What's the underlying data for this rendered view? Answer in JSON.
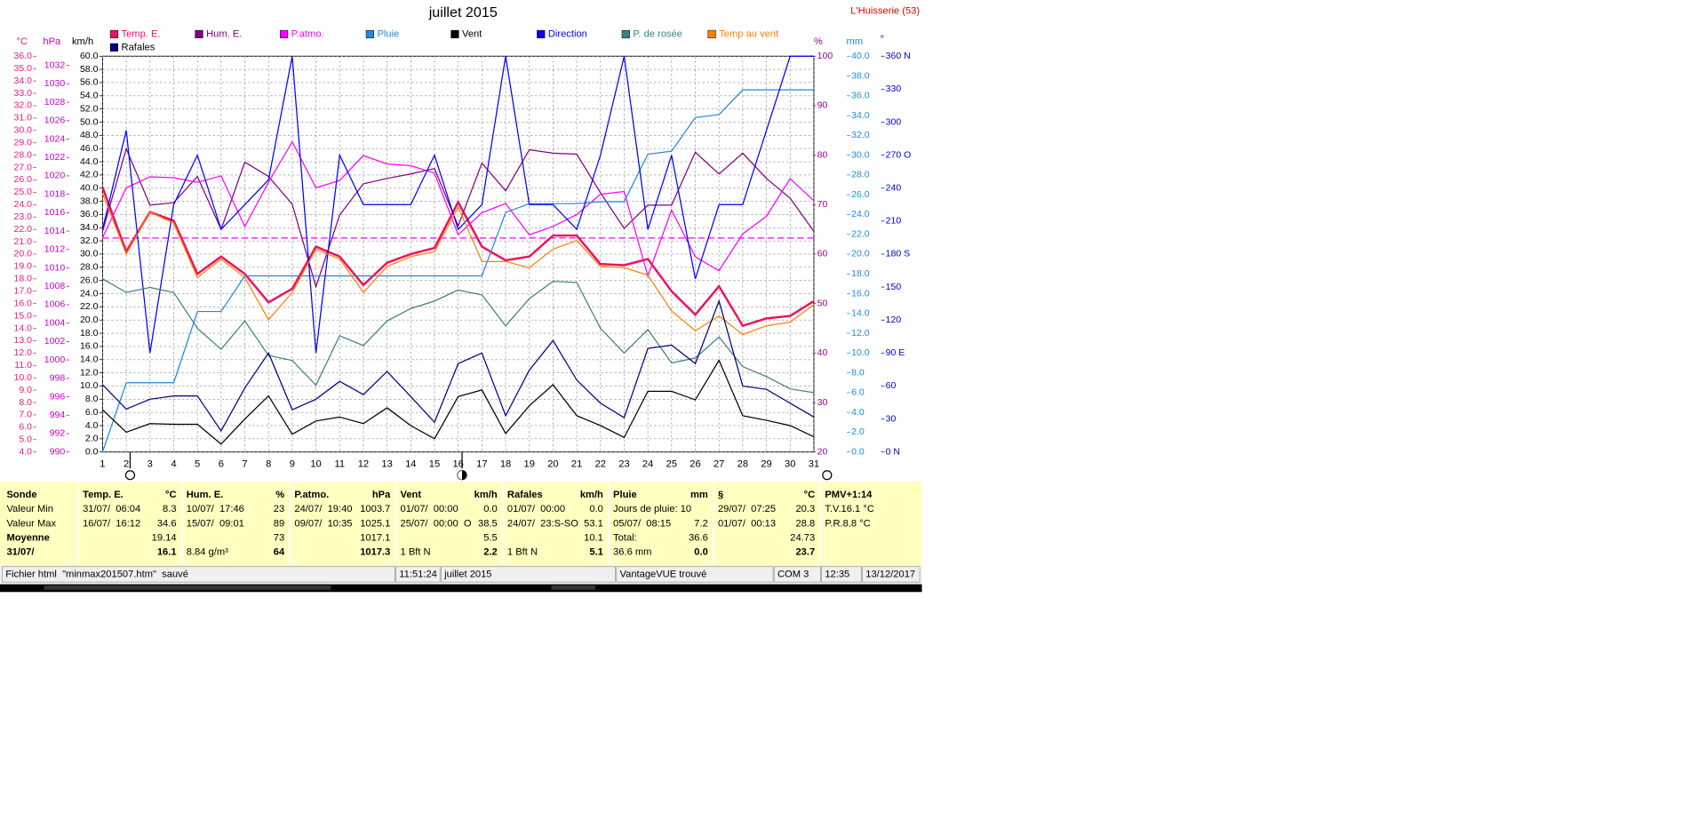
{
  "chart_data": {
    "type": "line",
    "title": "juillet 2015",
    "station": "L'Huisserie (53)",
    "x": [
      1,
      2,
      3,
      4,
      5,
      6,
      7,
      8,
      9,
      10,
      11,
      12,
      13,
      14,
      15,
      16,
      17,
      18,
      19,
      20,
      21,
      22,
      23,
      24,
      25,
      26,
      27,
      28,
      29,
      30,
      31
    ],
    "xlim": [
      1,
      31
    ],
    "grid": true,
    "axes": [
      {
        "id": "temp",
        "label": "°C",
        "color": "#e0207f",
        "ylim": [
          4,
          36
        ],
        "yticks": [
          {
            "value": 4,
            "label": "4.0"
          },
          {
            "value": 5,
            "label": "5.0"
          },
          {
            "value": 6,
            "label": "6.0"
          },
          {
            "value": 7,
            "label": "7.0"
          },
          {
            "value": 8,
            "label": "8.0"
          },
          {
            "value": 9,
            "label": "9.0"
          },
          {
            "value": 10,
            "label": "10.0"
          },
          {
            "value": 11,
            "label": "11.0"
          },
          {
            "value": 12,
            "label": "12.0"
          },
          {
            "value": 13,
            "label": "13.0"
          },
          {
            "value": 14,
            "label": "14.0"
          },
          {
            "value": 15,
            "label": "15.0"
          },
          {
            "value": 16,
            "label": "16.0"
          },
          {
            "value": 17,
            "label": "17.0"
          },
          {
            "value": 18,
            "label": "18.0"
          },
          {
            "value": 19,
            "label": "19.0"
          },
          {
            "value": 20,
            "label": "20.0"
          },
          {
            "value": 21,
            "label": "21.0"
          },
          {
            "value": 22,
            "label": "22.0"
          },
          {
            "value": 23,
            "label": "23.0"
          },
          {
            "value": 24,
            "label": "24.0"
          },
          {
            "value": 25,
            "label": "25.0"
          },
          {
            "value": 26,
            "label": "26.0"
          },
          {
            "value": 27,
            "label": "27.0"
          },
          {
            "value": 28,
            "label": "28.0"
          },
          {
            "value": 29,
            "label": "29.0"
          },
          {
            "value": 30,
            "label": "30.0"
          },
          {
            "value": 31,
            "label": "31.0"
          },
          {
            "value": 32,
            "label": "32.0"
          },
          {
            "value": 33,
            "label": "33.0"
          },
          {
            "value": 34,
            "label": "34.0"
          },
          {
            "value": 35,
            "label": "35.0"
          },
          {
            "value": 36,
            "label": "36.0"
          }
        ]
      },
      {
        "id": "hpa",
        "label": "hPa",
        "color": "#cc00cc",
        "ylim": [
          990,
          1033
        ],
        "yticks": [
          990,
          992,
          994,
          996,
          998,
          1000,
          1002,
          1004,
          1006,
          1008,
          1010,
          1012,
          1014,
          1016,
          1018,
          1020,
          1022,
          1024,
          1026,
          1028,
          1030,
          1032
        ]
      },
      {
        "id": "kmh",
        "label": "km/h",
        "color": "#000000",
        "grid": true,
        "ylim": [
          0,
          60
        ],
        "yticks": [
          {
            "value": 0,
            "label": "0.0"
          },
          {
            "value": 2,
            "label": "2.0"
          },
          {
            "value": 4,
            "label": "4.0"
          },
          {
            "value": 6,
            "label": "6.0"
          },
          {
            "value": 8,
            "label": "8.0"
          },
          {
            "value": 10,
            "label": "10.0"
          },
          {
            "value": 12,
            "label": "12.0"
          },
          {
            "value": 14,
            "label": "14.0"
          },
          {
            "value": 16,
            "label": "16.0"
          },
          {
            "value": 18,
            "label": "18.0"
          },
          {
            "value": 20,
            "label": "20.0"
          },
          {
            "value": 22,
            "label": "22.0"
          },
          {
            "value": 24,
            "label": "24.0"
          },
          {
            "value": 26,
            "label": "26.0"
          },
          {
            "value": 28,
            "label": "28.0"
          },
          {
            "value": 30,
            "label": "30.0"
          },
          {
            "value": 32,
            "label": "32.0"
          },
          {
            "value": 34,
            "label": "34.0"
          },
          {
            "value": 36,
            "label": "36.0"
          },
          {
            "value": 38,
            "label": "38.0"
          },
          {
            "value": 40,
            "label": "40.0"
          },
          {
            "value": 42,
            "label": "42.0"
          },
          {
            "value": 44,
            "label": "44.0"
          },
          {
            "value": 46,
            "label": "46.0"
          },
          {
            "value": 48,
            "label": "48.0"
          },
          {
            "value": 50,
            "label": "50.0"
          },
          {
            "value": 52,
            "label": "52.0"
          },
          {
            "value": 54,
            "label": "54.0"
          },
          {
            "value": 56,
            "label": "56.0"
          },
          {
            "value": 58,
            "label": "58.0"
          },
          {
            "value": 60,
            "label": "60.0"
          }
        ]
      },
      {
        "id": "pct",
        "label": "%",
        "color": "#990099",
        "ylim": [
          20,
          100
        ],
        "yticks": [
          20,
          30,
          40,
          50,
          60,
          70,
          80,
          90,
          100
        ]
      },
      {
        "id": "mm",
        "label": "mm",
        "color": "#1a8ce0",
        "ylim": [
          0,
          40
        ],
        "yticks": [
          {
            "value": 0,
            "label": "0.0"
          },
          {
            "value": 2,
            "label": "2.0"
          },
          {
            "value": 4,
            "label": "4.0"
          },
          {
            "value": 6,
            "label": "6.0"
          },
          {
            "value": 8,
            "label": "8.0"
          },
          {
            "value": 10,
            "label": "10.0"
          },
          {
            "value": 12,
            "label": "12.0"
          },
          {
            "value": 14,
            "label": "14.0"
          },
          {
            "value": 16,
            "label": "16.0"
          },
          {
            "value": 18,
            "label": "18.0"
          },
          {
            "value": 20,
            "label": "20.0"
          },
          {
            "value": 22,
            "label": "22.0"
          },
          {
            "value": 24,
            "label": "24.0"
          },
          {
            "value": 26,
            "label": "26.0"
          },
          {
            "value": 28,
            "label": "28.0"
          },
          {
            "value": 30,
            "label": "30.0"
          },
          {
            "value": 32,
            "label": "32.0"
          },
          {
            "value": 34,
            "label": "34.0"
          },
          {
            "value": 36,
            "label": "36.0"
          },
          {
            "value": 38,
            "label": "38.0"
          },
          {
            "value": 40,
            "label": "40.0"
          }
        ]
      },
      {
        "id": "dir",
        "label": "°",
        "color": "#0000cc",
        "ylim": [
          0,
          360
        ],
        "yticks": [
          {
            "value": 0,
            "label": "0 N"
          },
          30,
          60,
          {
            "value": 90,
            "label": "90 E"
          },
          120,
          150,
          {
            "value": 180,
            "label": "180 S"
          },
          210,
          240,
          {
            "value": 270,
            "label": "270 O"
          },
          300,
          330,
          {
            "value": 360,
            "label": "360 N"
          }
        ]
      }
    ],
    "series": [
      {
        "name": "Temp. E.",
        "color": "#ee1060",
        "axis": "temp",
        "values": [
          25.4,
          20.2,
          23.4,
          22.7,
          18.4,
          19.8,
          18.4,
          16.1,
          17.2,
          20.6,
          19.8,
          17.5,
          19.3,
          20.0,
          20.5,
          24.2,
          20.6,
          19.5,
          19.8,
          21.5,
          21.5,
          19.2,
          19.1,
          19.6,
          17.0,
          15.1,
          17.4,
          14.2,
          14.8,
          15.0,
          16.2
        ]
      },
      {
        "name": "Hum. E.",
        "color": "#800080",
        "axis": "pct",
        "values": [
          64.6,
          81.3,
          69.9,
          70.4,
          75.7,
          65.0,
          78.6,
          75.7,
          70.1,
          53.4,
          67.9,
          74.2,
          75.3,
          76.2,
          77.3,
          65.7,
          78.4,
          72.8,
          81.1,
          80.4,
          80.2,
          72.4,
          65.2,
          69.9,
          69.9,
          80.6,
          76.2,
          80.4,
          75.3,
          71.3,
          64.6
        ]
      },
      {
        "name": "P.atmo.",
        "color": "#ff00ff",
        "axis": "hpa",
        "values": [
          1013.3,
          1018.7,
          1019.9,
          1019.8,
          1019.3,
          1020.0,
          1014.5,
          1019.3,
          1023.7,
          1018.7,
          1019.5,
          1022.2,
          1021.3,
          1021.1,
          1020.3,
          1013.6,
          1016.0,
          1017.0,
          1013.6,
          1014.5,
          1015.8,
          1018.0,
          1018.3,
          1009.1,
          1016.3,
          1011.2,
          1009.7,
          1013.7,
          1015.6,
          1019.7,
          1017.3
        ]
      },
      {
        "name": "Pluie",
        "color": "#2088e0",
        "axis": "mm",
        "values": [
          0,
          7.0,
          7.0,
          7.0,
          14.2,
          14.2,
          17.8,
          17.8,
          17.8,
          17.8,
          17.8,
          17.8,
          17.8,
          17.8,
          17.8,
          17.8,
          17.8,
          24.2,
          25.1,
          25.1,
          25.1,
          25.3,
          25.3,
          30.1,
          30.4,
          33.8,
          34.1,
          36.6,
          36.6,
          36.6,
          36.6
        ]
      },
      {
        "name": "Vent",
        "color": "#000000",
        "axis": "kmh",
        "values": [
          6.4,
          3.0,
          4.3,
          4.2,
          4.2,
          1.2,
          5.0,
          8.5,
          2.7,
          4.7,
          5.3,
          4.3,
          6.7,
          4.0,
          2.0,
          8.4,
          9.4,
          2.8,
          7.0,
          10.2,
          5.5,
          4.0,
          2.2,
          9.2,
          9.2,
          7.9,
          13.9,
          5.5,
          4.8,
          4.0,
          2.3
        ]
      },
      {
        "name": "Direction",
        "color": "#0000ff",
        "axis": "dir",
        "values": [
          202.5,
          292.5,
          90,
          225,
          270,
          202.5,
          225,
          247.5,
          360,
          90,
          270,
          225,
          225,
          225,
          270,
          202.5,
          225,
          360,
          225,
          225,
          202.5,
          270,
          360,
          202.5,
          270,
          157.5,
          225,
          225,
          292.5,
          360,
          360
        ]
      },
      {
        "name": "P. de rosée",
        "color": "#408080",
        "axis": "temp",
        "values": [
          18.0,
          16.9,
          17.3,
          16.9,
          14.0,
          12.3,
          14.6,
          11.8,
          11.4,
          9.4,
          13.4,
          12.6,
          14.6,
          15.6,
          16.2,
          17.1,
          16.7,
          14.2,
          16.4,
          17.8,
          17.7,
          14.0,
          12.0,
          13.9,
          11.2,
          11.6,
          13.3,
          10.9,
          10.1,
          9.1,
          8.8
        ]
      },
      {
        "name": "Temp au vent",
        "color": "#ff8000",
        "axis": "temp",
        "values": [
          24.9,
          20.0,
          23.4,
          22.5,
          18.1,
          19.6,
          18.1,
          14.7,
          16.9,
          20.4,
          19.6,
          16.9,
          19.0,
          19.8,
          20.2,
          23.8,
          19.4,
          19.4,
          18.9,
          20.4,
          21.1,
          19.0,
          18.9,
          18.3,
          15.4,
          13.8,
          15.0,
          13.5,
          14.2,
          14.5,
          15.9
        ]
      },
      {
        "name": "Rafales",
        "color": "#000080",
        "axis": "kmh",
        "values": [
          10.2,
          6.5,
          8.0,
          8.5,
          8.5,
          3.2,
          9.7,
          15.0,
          6.4,
          8.0,
          10.7,
          8.7,
          12.2,
          8.4,
          4.5,
          13.4,
          15.0,
          5.5,
          12.4,
          16.9,
          10.9,
          7.4,
          5.2,
          15.7,
          16.2,
          13.4,
          22.9,
          10.0,
          9.5,
          7.4,
          5.3
        ]
      }
    ],
    "reference_lines": [
      {
        "axis": "temp",
        "value": 21.3,
        "color": "#ff00ff"
      }
    ]
  },
  "stats": {
    "columns": [
      {
        "header": {
          "l": "Sonde"
        },
        "rows": [
          {
            "l": "Valeur Min"
          },
          {
            "l": "Valeur Max"
          },
          {
            "l": "Moyenne"
          },
          {
            "l": "31/07/"
          }
        ]
      },
      {
        "header": {
          "l": "Temp. E.",
          "r": "°C"
        },
        "rows": [
          {
            "l": "31/07/  06:04",
            "r": "8.3"
          },
          {
            "l": "16/07/  16:12",
            "r": "34.6"
          },
          {
            "r": "19.14"
          },
          {
            "r": "16.1"
          }
        ]
      },
      {
        "header": {
          "l": "Hum. E.",
          "r": "%"
        },
        "rows": [
          {
            "l": "10/07/  17:46",
            "r": "23"
          },
          {
            "l": "15/07/  09:01",
            "r": "89"
          },
          {
            "r": "73"
          },
          {
            "l": "8.84 g/m³",
            "r": "64"
          }
        ]
      },
      {
        "header": {
          "l": "P.atmo.",
          "r": "hPa"
        },
        "rows": [
          {
            "l": "24/07/  19:40",
            "r": "1003.7"
          },
          {
            "l": "09/07/  10:35",
            "r": "1025.1"
          },
          {
            "r": "1017.1"
          },
          {
            "r": "1017.3"
          }
        ]
      },
      {
        "header": {
          "l": "Vent",
          "r": "km/h"
        },
        "rows": [
          {
            "l": "01/07/  00:00",
            "r": "0.0"
          },
          {
            "l": "25/07/  00:00  O",
            "r": "38.5"
          },
          {
            "r": "5.5"
          },
          {
            "l": "1 Bft N",
            "r": "2.2"
          }
        ]
      },
      {
        "header": {
          "l": "Rafales",
          "r": "km/h"
        },
        "rows": [
          {
            "l": "01/07/  00:00",
            "r": "0.0"
          },
          {
            "l": "24/07/  23:S-SO",
            "r": "53.1"
          },
          {
            "r": "10.1"
          },
          {
            "l": "1 Bft N",
            "r": "5.1"
          }
        ]
      },
      {
        "header": {
          "l": "Pluie",
          "r": "mm"
        },
        "rows": [
          {
            "l": "Jours de pluie: 10"
          },
          {
            "l": "05/07/  08:15",
            "r": "7.2"
          },
          {
            "l": "Total:",
            "r": "36.6"
          },
          {
            "l": "36.6 mm",
            "r": "0.0"
          }
        ]
      },
      {
        "header": {
          "l": "§",
          "r": "°C"
        },
        "rows": [
          {
            "l": "29/07/  07:25",
            "r": "20.3"
          },
          {
            "l": "01/07/  00:13",
            "r": "28.8"
          },
          {
            "r": "24.73"
          },
          {
            "r": "23.7"
          }
        ]
      },
      {
        "header": {
          "l": "PMV+1:14"
        },
        "rows": [
          {
            "l": "T.V.16.1 °C"
          },
          {
            "l": "P.R.8.8 °C"
          }
        ]
      }
    ]
  },
  "status_bar": [
    "Fichier html  \"minmax201507.htm\"  sauvé",
    "11:51:24",
    "juillet 2015",
    "VantageVUE trouvé",
    "COM 3",
    "12:35",
    "13/12/2017"
  ]
}
